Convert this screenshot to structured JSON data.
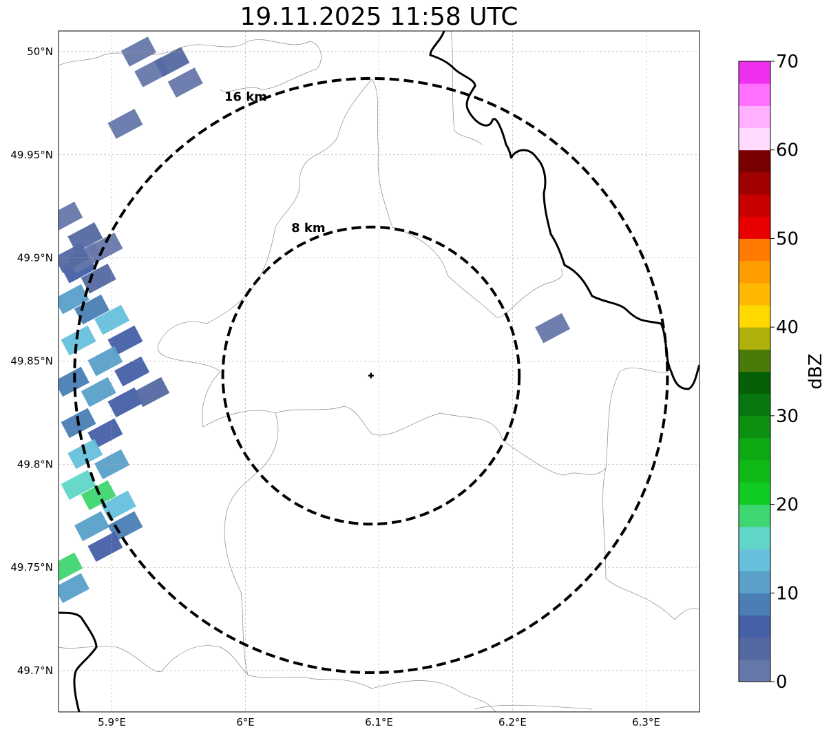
{
  "title": "19.11.2025 11:58 UTC",
  "map": {
    "lon_range": [
      5.86,
      6.34
    ],
    "lat_range": [
      49.68,
      50.01
    ],
    "lon_ticks": [
      {
        "value": 5.9,
        "label": "5.9°E"
      },
      {
        "value": 6.0,
        "label": "6°E"
      },
      {
        "value": 6.1,
        "label": "6.1°E"
      },
      {
        "value": 6.2,
        "label": "6.2°E"
      },
      {
        "value": 6.3,
        "label": "6.3°E"
      }
    ],
    "lat_ticks": [
      {
        "value": 49.7,
        "label": "49.7°N"
      },
      {
        "value": 49.75,
        "label": "49.75°N"
      },
      {
        "value": 49.8,
        "label": "49.8°N"
      },
      {
        "value": 49.85,
        "label": "49.85°N"
      },
      {
        "value": 49.9,
        "label": "49.9°N"
      },
      {
        "value": 49.95,
        "label": "49.95°N"
      },
      {
        "value": 50.0,
        "label": "50°N"
      }
    ],
    "gridlines": true,
    "radar_site": {
      "lon": 6.094,
      "lat": 49.843
    },
    "range_rings": [
      {
        "label": "8 km",
        "lat_radius": 0.072,
        "lon_radius": 0.111
      },
      {
        "label": "16 km",
        "lat_radius": 0.144,
        "lon_radius": 0.222
      }
    ]
  },
  "colorbar": {
    "label": "dBZ",
    "min": 0,
    "max": 70,
    "ticks": [
      0,
      10,
      20,
      30,
      40,
      50,
      60,
      70
    ],
    "colors": [
      "#6677aa",
      "#5469a2",
      "#4560a6",
      "#4a7eb5",
      "#5aa0c9",
      "#66c0dc",
      "#5fd6c6",
      "#3ed670",
      "#10cc20",
      "#10bb18",
      "#0fa914",
      "#0c9010",
      "#087710",
      "#066006",
      "#4a7a0a",
      "#b0b00a",
      "#ffd800",
      "#ffb800",
      "#ff9c00",
      "#ff7a00",
      "#e80000",
      "#c80000",
      "#a00000",
      "#780000",
      "#ffdcff",
      "#ffb0ff",
      "#ff70ff",
      "#f030f0"
    ]
  },
  "echoes": [
    {
      "lon": 5.865,
      "lat": 49.92,
      "dbz": 2
    },
    {
      "lon": 5.88,
      "lat": 49.91,
      "dbz": 3
    },
    {
      "lon": 5.875,
      "lat": 49.895,
      "dbz": 5
    },
    {
      "lon": 5.89,
      "lat": 49.89,
      "dbz": 4
    },
    {
      "lon": 5.87,
      "lat": 49.88,
      "dbz": 12
    },
    {
      "lon": 5.885,
      "lat": 49.875,
      "dbz": 8
    },
    {
      "lon": 5.9,
      "lat": 49.87,
      "dbz": 13
    },
    {
      "lon": 5.91,
      "lat": 49.86,
      "dbz": 6
    },
    {
      "lon": 5.875,
      "lat": 49.86,
      "dbz": 14
    },
    {
      "lon": 5.895,
      "lat": 49.85,
      "dbz": 10
    },
    {
      "lon": 5.915,
      "lat": 49.845,
      "dbz": 7
    },
    {
      "lon": 5.87,
      "lat": 49.84,
      "dbz": 9
    },
    {
      "lon": 5.89,
      "lat": 49.835,
      "dbz": 12
    },
    {
      "lon": 5.91,
      "lat": 49.83,
      "dbz": 5
    },
    {
      "lon": 5.93,
      "lat": 49.835,
      "dbz": 4
    },
    {
      "lon": 5.875,
      "lat": 49.82,
      "dbz": 8
    },
    {
      "lon": 5.895,
      "lat": 49.815,
      "dbz": 6
    },
    {
      "lon": 5.88,
      "lat": 49.805,
      "dbz": 14
    },
    {
      "lon": 5.9,
      "lat": 49.8,
      "dbz": 12
    },
    {
      "lon": 5.875,
      "lat": 49.79,
      "dbz": 17
    },
    {
      "lon": 5.89,
      "lat": 49.785,
      "dbz": 19
    },
    {
      "lon": 5.905,
      "lat": 49.78,
      "dbz": 14
    },
    {
      "lon": 5.885,
      "lat": 49.77,
      "dbz": 11
    },
    {
      "lon": 5.91,
      "lat": 49.77,
      "dbz": 9
    },
    {
      "lon": 5.895,
      "lat": 49.76,
      "dbz": 6
    },
    {
      "lon": 5.865,
      "lat": 49.75,
      "dbz": 18
    },
    {
      "lon": 5.87,
      "lat": 49.74,
      "dbz": 12
    },
    {
      "lon": 5.88,
      "lat": 49.9,
      "dbz": 2
    },
    {
      "lon": 5.895,
      "lat": 49.905,
      "dbz": 1
    },
    {
      "lon": 5.87,
      "lat": 49.9,
      "dbz": 4
    },
    {
      "lon": 5.93,
      "lat": 49.99,
      "dbz": 2
    },
    {
      "lon": 5.945,
      "lat": 49.995,
      "dbz": 3
    },
    {
      "lon": 5.955,
      "lat": 49.985,
      "dbz": 2
    },
    {
      "lon": 5.92,
      "lat": 50.0,
      "dbz": 1
    },
    {
      "lon": 5.91,
      "lat": 49.965,
      "dbz": 2
    },
    {
      "lon": 6.23,
      "lat": 49.866,
      "dbz": 2
    }
  ]
}
